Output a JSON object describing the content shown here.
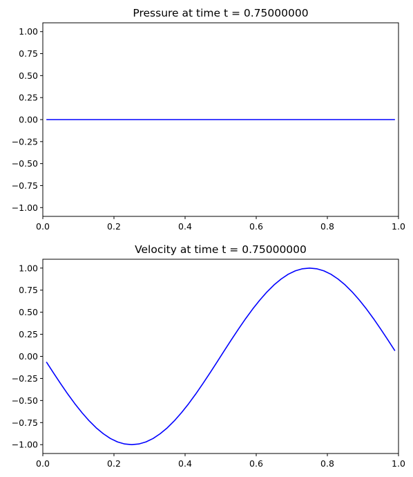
{
  "chart_data": [
    {
      "type": "line",
      "title": "Pressure at time t =     0.75000000",
      "xlim": [
        0,
        1
      ],
      "ylim": [
        -1.1,
        1.1
      ],
      "xticks": [
        0,
        0.2,
        0.4,
        0.6,
        0.8,
        1.0
      ],
      "yticks": [
        -1.0,
        -0.75,
        -0.5,
        -0.25,
        0.0,
        0.25,
        0.5,
        0.75,
        1.0
      ],
      "xtick_labels": [
        "0.0",
        "0.2",
        "0.4",
        "0.6",
        "0.8",
        "1.0"
      ],
      "ytick_labels": [
        "−1.00",
        "−0.75",
        "−0.50",
        "−0.25",
        "0.00",
        "0.25",
        "0.50",
        "0.75",
        "1.00"
      ],
      "grid": false,
      "line_color": "#0000ff",
      "series": [
        {
          "x": [
            0.01,
            0.03,
            0.05,
            0.07,
            0.09,
            0.11,
            0.13,
            0.15,
            0.17,
            0.19,
            0.21,
            0.23,
            0.25,
            0.27,
            0.29,
            0.31,
            0.33,
            0.35,
            0.37,
            0.39,
            0.41,
            0.43,
            0.45,
            0.47,
            0.49,
            0.51,
            0.53,
            0.55,
            0.57,
            0.59,
            0.61,
            0.63,
            0.65,
            0.67,
            0.69,
            0.71,
            0.73,
            0.75,
            0.77,
            0.79,
            0.81,
            0.83,
            0.85,
            0.87,
            0.89,
            0.91,
            0.93,
            0.95,
            0.97,
            0.99
          ],
          "y": [
            0.0,
            0.0,
            0.0,
            0.0,
            0.0,
            0.0,
            0.0,
            0.0,
            0.0,
            0.0,
            0.0,
            0.0,
            0.0,
            0.0,
            0.0,
            0.0,
            0.0,
            0.0,
            0.0,
            0.0,
            0.0,
            0.0,
            0.0,
            0.0,
            0.0,
            0.0,
            0.0,
            0.0,
            0.0,
            0.0,
            0.0,
            0.0,
            0.0,
            0.0,
            0.0,
            0.0,
            0.0,
            0.0,
            0.0,
            0.0,
            0.0,
            0.0,
            0.0,
            0.0,
            0.0,
            0.0,
            0.0,
            0.0,
            0.0,
            0.0
          ]
        }
      ]
    },
    {
      "type": "line",
      "title": "Velocity at time t =     0.75000000",
      "xlim": [
        0,
        1
      ],
      "ylim": [
        -1.1,
        1.1
      ],
      "xticks": [
        0,
        0.2,
        0.4,
        0.6,
        0.8,
        1.0
      ],
      "yticks": [
        -1.0,
        -0.75,
        -0.5,
        -0.25,
        0.0,
        0.25,
        0.5,
        0.75,
        1.0
      ],
      "xtick_labels": [
        "0.0",
        "0.2",
        "0.4",
        "0.6",
        "0.8",
        "1.0"
      ],
      "ytick_labels": [
        "−1.00",
        "−0.75",
        "−0.50",
        "−0.25",
        "0.00",
        "0.25",
        "0.50",
        "0.75",
        "1.00"
      ],
      "grid": false,
      "line_color": "#0000ff",
      "series": [
        {
          "x": [
            0.01,
            0.03,
            0.05,
            0.07,
            0.09,
            0.11,
            0.13,
            0.15,
            0.17,
            0.19,
            0.21,
            0.23,
            0.25,
            0.27,
            0.29,
            0.31,
            0.33,
            0.35,
            0.37,
            0.39,
            0.41,
            0.43,
            0.45,
            0.47,
            0.49,
            0.51,
            0.53,
            0.55,
            0.57,
            0.59,
            0.61,
            0.63,
            0.65,
            0.67,
            0.69,
            0.71,
            0.73,
            0.75,
            0.77,
            0.79,
            0.81,
            0.83,
            0.85,
            0.87,
            0.89,
            0.91,
            0.93,
            0.95,
            0.97,
            0.99
          ],
          "y": [
            -0.063,
            -0.187,
            -0.309,
            -0.426,
            -0.536,
            -0.637,
            -0.729,
            -0.809,
            -0.876,
            -0.93,
            -0.969,
            -0.992,
            -1.0,
            -0.992,
            -0.969,
            -0.93,
            -0.876,
            -0.809,
            -0.729,
            -0.637,
            -0.536,
            -0.426,
            -0.309,
            -0.187,
            -0.063,
            0.063,
            0.187,
            0.309,
            0.426,
            0.536,
            0.637,
            0.729,
            0.809,
            0.876,
            0.93,
            0.969,
            0.992,
            1.0,
            0.992,
            0.969,
            0.93,
            0.876,
            0.809,
            0.729,
            0.637,
            0.536,
            0.426,
            0.309,
            0.187,
            0.063
          ]
        }
      ]
    }
  ]
}
